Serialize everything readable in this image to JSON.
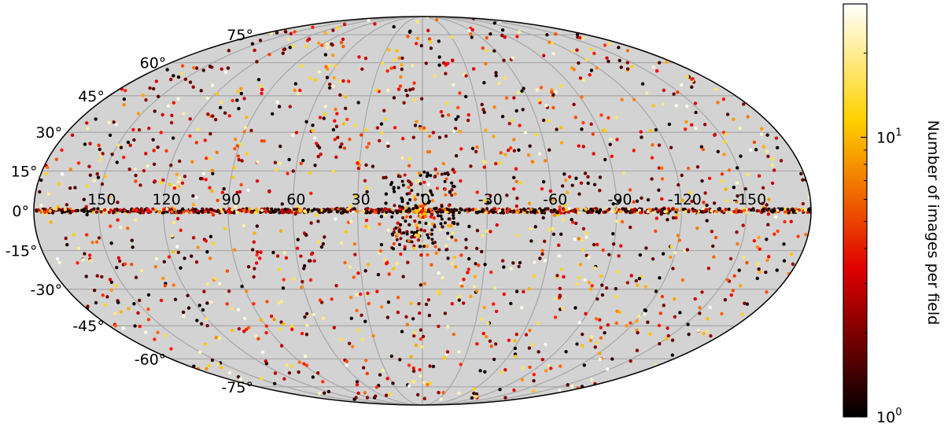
{
  "chart_data": {
    "type": "scatter",
    "projection": "mollweide",
    "title": "",
    "grid": true,
    "longitude_ticks": [
      "150",
      "120",
      "90",
      "60",
      "30",
      "0",
      "-30",
      "-60",
      "-90",
      "-120",
      "-150"
    ],
    "longitude_values": [
      150,
      120,
      90,
      60,
      30,
      0,
      -30,
      -60,
      -90,
      -120,
      -150
    ],
    "latitude_ticks": [
      "75°",
      "60°",
      "45°",
      "30°",
      "15°",
      "0°",
      "-15°",
      "-30°",
      "-45°",
      "-60°",
      "-75°"
    ],
    "latitude_values": [
      75,
      60,
      45,
      30,
      15,
      0,
      -15,
      -30,
      -45,
      -60,
      -75
    ],
    "background_color": "#d3d3d3",
    "grid_color": "#a6a6a6",
    "colormap": "hot",
    "colorbar": {
      "label": "Number of images per field",
      "scale": "log",
      "range": [
        1,
        30
      ],
      "tick_base": "10",
      "ticks": [
        {
          "value": 1,
          "exponent": "0"
        },
        {
          "value": 10,
          "exponent": "1"
        }
      ],
      "position": "right"
    },
    "distribution_note_density": {
      "galactic_plane_band": "dense",
      "galactic_center": "dense",
      "elsewhere": "sparse"
    }
  }
}
